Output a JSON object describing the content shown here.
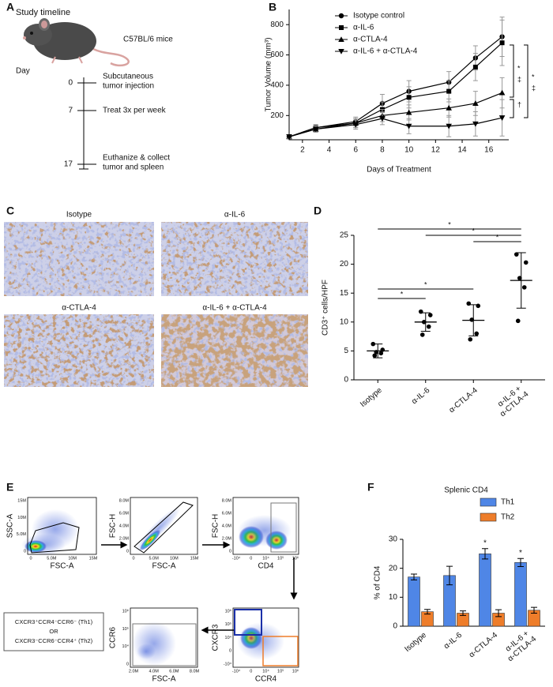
{
  "panel_letters": [
    "A",
    "B",
    "C",
    "D",
    "E",
    "F"
  ],
  "panel_a": {
    "title": "Study timeline",
    "mouse_label": "C57BL/6 mice",
    "day_label": "Day",
    "events": [
      {
        "day": 0,
        "text": [
          "Subcutaneous",
          "tumor injection"
        ]
      },
      {
        "day": 7,
        "text": [
          "Treat 3x per week"
        ]
      },
      {
        "day": 17,
        "text": [
          "Euthanize & collect",
          "tumor and spleen"
        ]
      }
    ]
  },
  "panel_c": {
    "labels": [
      "Isotype",
      "α-IL-6",
      "α-CTLA-4",
      "α-IL-6 + α-CTLA-4"
    ]
  },
  "panel_e": {
    "plots": [
      {
        "x_label": "FSC-A",
        "y_label": "SSC-A",
        "x_ticks": [
          "0",
          "5.0M",
          "10M",
          "15M"
        ],
        "y_ticks": [
          "0",
          "5.0M",
          "10M",
          "15M"
        ]
      },
      {
        "x_label": "FSC-A",
        "y_label": "FSC-H",
        "x_ticks": [
          "0",
          "5.0M",
          "10M",
          "15M"
        ],
        "y_ticks": [
          "0",
          "2.0M",
          "4.0M",
          "6.0M",
          "8.0M"
        ]
      },
      {
        "x_label": "CD4",
        "y_label": "FSC-H",
        "x_ticks": [
          "-10⁴",
          "0",
          "10⁴",
          "10⁵",
          "10⁶"
        ],
        "y_ticks": [
          "0",
          "2.0M",
          "4.0M",
          "6.0M",
          "8.0M"
        ]
      },
      {
        "x_label": "CCR4",
        "y_label": "CXCR3",
        "x_ticks": [
          "-10⁴",
          "0",
          "10⁴",
          "10⁵",
          "10⁶"
        ],
        "y_ticks": [
          "-10⁴",
          "0",
          "10⁴",
          "10⁵",
          "10⁶"
        ]
      },
      {
        "x_label": "FSC-A",
        "y_label": "CCR6",
        "x_ticks": [
          "2.0M",
          "4.0M",
          "6.0M",
          "8.0M"
        ],
        "y_ticks": [
          "0",
          "10⁴",
          "10⁵",
          "10⁶"
        ]
      }
    ],
    "gate_text": [
      "CXCR3⁺CCR4⁻CCR6⁻ (Th1)",
      "OR",
      "CXCR3⁻CCR6⁻CCR4⁺ (Th2)"
    ]
  },
  "chart_data": [
    {
      "type": "line",
      "y_label": "Tumor Volume (mm³)",
      "x_label": "Days of Treatment",
      "x": [
        1,
        3,
        6,
        8,
        10,
        13,
        15,
        17
      ],
      "xlim": [
        1,
        17.5
      ],
      "xticks": [
        2,
        4,
        6,
        8,
        10,
        12,
        14,
        16
      ],
      "ylim": [
        40,
        900
      ],
      "yticks": [
        200,
        400,
        600,
        800
      ],
      "series": [
        {
          "name": "Isotype control",
          "color": "#000000",
          "marker": "circle",
          "values": [
            60,
            120,
            160,
            280,
            360,
            420,
            580,
            720
          ],
          "errors": [
            10,
            20,
            30,
            60,
            70,
            70,
            80,
            130
          ]
        },
        {
          "name": "α-IL-6",
          "color": "#000000",
          "marker": "square",
          "values": [
            60,
            120,
            150,
            240,
            320,
            360,
            520,
            680
          ],
          "errors": [
            10,
            20,
            30,
            50,
            70,
            70,
            90,
            150
          ]
        },
        {
          "name": "α-CTLA-4",
          "color": "#000000",
          "marker": "triangle-up",
          "values": [
            60,
            110,
            150,
            200,
            220,
            250,
            280,
            350
          ],
          "errors": [
            10,
            20,
            30,
            40,
            50,
            60,
            80,
            100
          ]
        },
        {
          "name": "α-IL-6 + α-CTLA-4",
          "color": "#000000",
          "marker": "triangle-down",
          "values": [
            60,
            110,
            140,
            180,
            130,
            130,
            145,
            185
          ],
          "errors": [
            10,
            20,
            30,
            40,
            50,
            70,
            80,
            120
          ]
        }
      ],
      "annotations": [
        "*",
        "‡",
        "†",
        "*",
        "‡"
      ]
    },
    {
      "type": "dot",
      "y_label": "CD3⁺ cells/HPF",
      "categories": [
        "Isotype",
        "α-IL-6",
        "α-CTLA-4",
        "α-IL-6 + α-CTLA-4"
      ],
      "ylim": [
        0,
        25
      ],
      "yticks": [
        0,
        5,
        10,
        15,
        20,
        25
      ],
      "points": [
        [
          6.2,
          5.2,
          4.8,
          4.6,
          4.2
        ],
        [
          11.8,
          11.2,
          10.0,
          9.2,
          7.8
        ],
        [
          13.2,
          12.8,
          10.4,
          8.0,
          7.0
        ],
        [
          21.7,
          20.3,
          17.6,
          16.0,
          10.2
        ]
      ],
      "means": [
        5.0,
        10.0,
        10.3,
        17.2
      ],
      "sds": [
        1.2,
        1.6,
        2.7,
        4.8
      ],
      "annotations": [
        "*",
        "*",
        "*",
        "*",
        "*"
      ]
    },
    {
      "type": "bar",
      "title": "Splenic CD4",
      "y_label": "% of CD4",
      "categories": [
        "Isotype",
        "α-IL-6",
        "α-CTLA-4",
        "α-IL-6 + α-CTLA-4"
      ],
      "ylim": [
        0,
        30
      ],
      "yticks": [
        0,
        10,
        20,
        30
      ],
      "series": [
        {
          "name": "Th1",
          "color": "#4f86e6",
          "values": [
            17,
            17.5,
            25,
            22
          ],
          "errors": [
            1,
            3.2,
            1.8,
            1.4
          ]
        },
        {
          "name": "Th2",
          "color": "#ee7d2a",
          "values": [
            5,
            4.5,
            4.5,
            5.5
          ],
          "errors": [
            0.8,
            0.8,
            1.2,
            1
          ]
        }
      ],
      "annotations": [
        "*",
        "*"
      ]
    }
  ]
}
